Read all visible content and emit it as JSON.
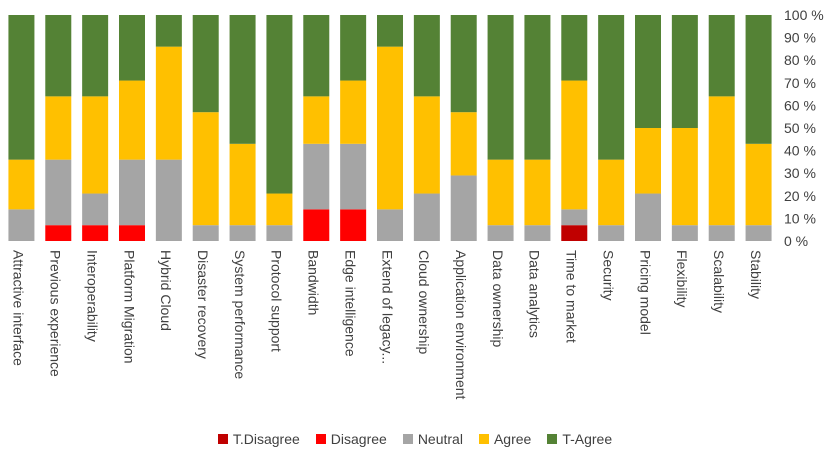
{
  "chart_data": {
    "type": "bar",
    "stacked": true,
    "percent": true,
    "categories": [
      "Attractive interface",
      "Previous experience",
      "Interoperability",
      "Platform Migration",
      "Hybrid Cloud",
      "Disaster recovery",
      "System performance",
      "Protocol support",
      "Bandwidth",
      "Edge intelligence",
      "Extend of legacy...",
      "Cloud ownership",
      "Application environment",
      "Data ownership",
      "Data analytics",
      "Time to market",
      "Security",
      "Pricing model",
      "Flexibility",
      "Scalability",
      "Stability"
    ],
    "series": [
      {
        "name": "T.Disagree",
        "color": "#c00000",
        "values": [
          0,
          0,
          0,
          0,
          0,
          0,
          0,
          0,
          0,
          0,
          0,
          0,
          0,
          0,
          0,
          7,
          0,
          0,
          0,
          0,
          0
        ]
      },
      {
        "name": "Disagree",
        "color": "#ff0000",
        "values": [
          0,
          7,
          7,
          7,
          0,
          0,
          0,
          0,
          14,
          14,
          0,
          0,
          0,
          0,
          0,
          0,
          0,
          0,
          0,
          0,
          0
        ]
      },
      {
        "name": "Neutral",
        "color": "#a5a5a5",
        "values": [
          14,
          29,
          14,
          29,
          36,
          7,
          7,
          7,
          29,
          29,
          14,
          21,
          29,
          7,
          7,
          7,
          7,
          21,
          7,
          7,
          7
        ]
      },
      {
        "name": "Agree",
        "color": "#ffc000",
        "values": [
          22,
          28,
          43,
          35,
          50,
          50,
          36,
          14,
          21,
          28,
          72,
          43,
          28,
          29,
          29,
          57,
          29,
          29,
          43,
          57,
          36
        ]
      },
      {
        "name": "T-Agree",
        "color": "#548235",
        "values": [
          64,
          36,
          36,
          29,
          14,
          43,
          57,
          79,
          36,
          29,
          14,
          36,
          43,
          64,
          64,
          29,
          64,
          50,
          50,
          36,
          57
        ]
      }
    ],
    "ylim": [
      0,
      100
    ],
    "yticks": [
      "0 %",
      "10 %",
      "20 %",
      "30 %",
      "40 %",
      "50 %",
      "60 %",
      "70 %",
      "80 %",
      "90 %",
      "100 %"
    ],
    "legend_position": "bottom"
  }
}
